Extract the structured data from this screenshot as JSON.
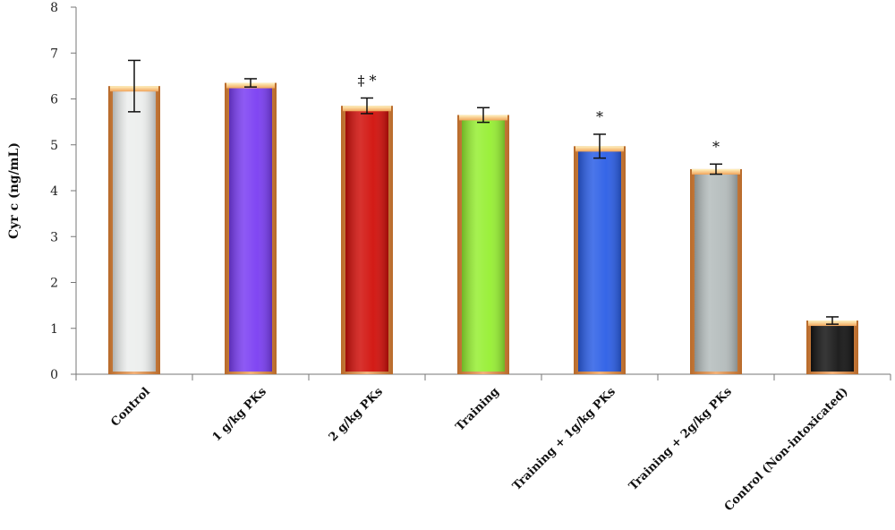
{
  "chart_data": {
    "type": "bar",
    "title": "",
    "xlabel": "",
    "ylabel": "Cyr c (ng/mL)",
    "ylim": [
      0,
      8
    ],
    "yticks": [
      0,
      1,
      2,
      3,
      4,
      5,
      6,
      7,
      8
    ],
    "grid": false,
    "legend": "none",
    "categories": [
      "Control",
      "1 g/kg PKs",
      "2 g/kg PKs",
      "Training",
      "Training + 1g/kg PKs",
      "Training + 2g/kg PKs",
      "Control (Non-intoxicated)"
    ],
    "values": [
      6.28,
      6.35,
      5.85,
      5.65,
      4.97,
      4.47,
      1.17
    ],
    "errors": [
      0.56,
      0.09,
      0.17,
      0.16,
      0.26,
      0.11,
      0.08
    ],
    "annotations": [
      "",
      "",
      "‡ *",
      "",
      "*",
      "*",
      ""
    ],
    "colors": [
      "#eceeed",
      "#7a3df2",
      "#d10f0a",
      "#96ef32",
      "#2b5ee6",
      "#b4bcbc",
      "#141414"
    ],
    "border_color": "#d38a45"
  }
}
